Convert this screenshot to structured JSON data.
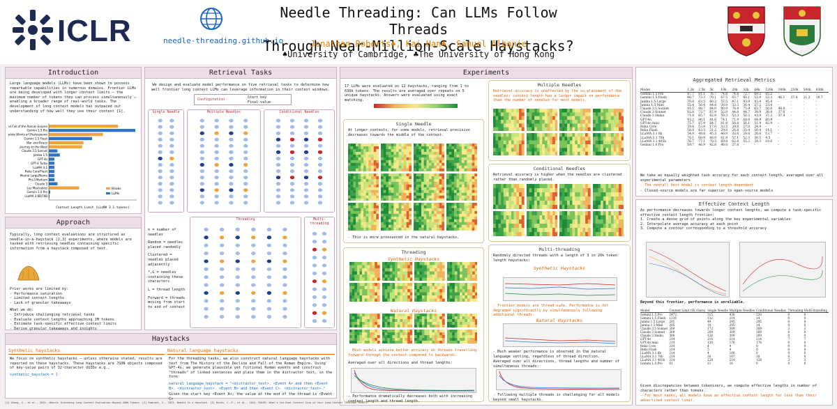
{
  "header": {
    "logo_text": "ICLR",
    "site": "needle-threading.github.io",
    "title_line1": "Needle Threading: Can LLMs Follow Threads",
    "title_line2": "Through Near-Million-Scale Haystacks?",
    "authors": "Jonathan Roberts♠, Kai Han♣, Samuel Albanie",
    "affiliations": "♠University of Cambridge, ♣The University of Hong Kong"
  },
  "intro": {
    "title": "Introduction",
    "text": "Large language models (LLMs) have been shown to possess remarkable capabilities in numerous domains. Frontier LLMs are being developed with longer context limits – the maximum number of tokens they can process simultaneously – enabling a broader range of real-world tasks. The development of long context models has outpaced our understanding of how well they use their context [1].",
    "chart_title": "Context Length Limit (LLaMA 3.1 tokens)",
    "legend": [
      "Books",
      "LLMs"
    ]
  },
  "chart_data": {
    "type": "bar",
    "categories": [
      "Decline and Fall of the Roman Empire",
      "Gemini 1.5 Pro",
      "Complete Works of Shakespeare",
      "Gemini 1.5 Flash",
      "War and Peace",
      "Journey to the West",
      "Claude 3.5 Sonnet",
      "Jamba 1.5",
      "GPT-4o",
      "GPT-4 Turbo",
      "LLaMA 3.1",
      "Reka Core/Flash",
      "Mistral Large/Nemo",
      "Phi-3 Medium",
      "Claude 3",
      "Les Misérables",
      "Gemini 1.0 Pro",
      "LLaMA 3 8B/70B"
    ],
    "values": [
      1.6,
      2.0,
      1.25,
      1.0,
      0.8,
      0.77,
      0.2,
      0.256,
      0.128,
      0.128,
      0.128,
      0.128,
      0.128,
      0.128,
      0.2,
      0.7,
      0.032,
      0.008
    ],
    "xlabel": "Context length limit (LLaMA 3.1 tokens)"
  },
  "approach": {
    "title": "Approach",
    "text": "Typically, long context evaluations are structured as needle-in-a-haystack [2,3] experiments, where models are tasked with retrieving needles containing specific information from a haystack composed of text.",
    "limits_title": "Prior works are limited by:",
    "limits": [
      "- Performance saturation",
      "- Limited context lengths",
      "- Lack of granular takeaways"
    ],
    "do_title": "What we do:",
    "do": [
      "- Introduce challenging retrieval tasks",
      "- Evaluate context lengths approaching 1M tokens",
      "- Estimate task-specific effective context limits",
      "- Derive granular takeaways and insights"
    ]
  },
  "retrieval": {
    "title": "Retrieval Tasks",
    "text": "We design and evaluate model performance on five retrieval tasks to determine how well frontier long context LLMs can leverage information in their context windows.",
    "config": "Configuration",
    "start_key": "Start key",
    "final_value": "Final value",
    "single": "Single Needle",
    "multiple": "Multiple Needles",
    "conditional": "Conditional Needles",
    "threading": "Threading",
    "multi_threading": "Multi-threading",
    "legend": [
      "n = number of needles",
      "Random = needles placed randomly",
      "Clustered = needles placed adjacently",
      "*,& = needles containing these characters",
      "L = thread length",
      "Forward = threads moving from start to end of context"
    ],
    "cols": [
      "Key,k",
      "Values,v",
      "Random, n = 3",
      "Clustered, n = 3",
      "Random, n = 3",
      "Clustered, n = 3",
      "Forward, L = 2",
      "Backward, L = 3",
      "Random, L = 4",
      "2 threads, all forward, L"
    ]
  },
  "experiments": {
    "title": "Experiments",
    "text": "17 LLMs were evaluated on 12 haystacks, ranging from 1 to 630k tokens. The results are averaged over repeats on 5 unique haystacks. Answers were evaluated using exact matching.",
    "single_title": "Single Needle",
    "single_text": "At longer contexts, for some models, retrieval precision decreases towards the middle of the context.",
    "single_text2": "- This is more pronounced in the natural haystacks.",
    "multi_title": "Multiple Needles",
    "multi_text": "Retrieval accuracy is unaffected by the co-placement of the needles; context length has a larger impact on performance than the number of needles for most models.",
    "cond_title": "Conditional Needles",
    "cond_text": "Retrieval accuracy is higher when the needles are clustered rather than randomly placed.",
    "thread_title": "Threading",
    "synthetic": "Synthetic Haystacks",
    "natural": "Natural Haystacks",
    "thread_text": "- Most models achieve better accuracy on threads travelling forward through the context compared to backwards.",
    "thread_text2": "Averaged over all directions and thread lengths:",
    "thread_text3": "- Performance dramatically decreases both with increasing context length and thread length.",
    "mt_title": "Multi-threading",
    "mt_text": "Randomly directed threads with a length of 3 in 20k token length haystacks:",
    "mt_text2": "- Frontier models are thread-safe. Performance is not degraded significantly by simultaneously following additional threads.",
    "mt_text3": "- Much weaker performance is observed in the natural language setting, regardless of thread direction.",
    "mt_text4": "Averaged over all directions, thread lengths and number of simultaneous threads:",
    "mt_text5": "- Following multiple threads is challenging for all models beyond small haystacks."
  },
  "agg": {
    "title": "Aggregated Retrieval Metrics",
    "header": [
      "Model",
      "1.2k",
      "2.5k",
      "5k",
      "10k",
      "20k",
      "32k",
      "64k",
      "128k",
      "180k",
      "250k",
      "500k",
      "630k"
    ],
    "rows": [
      [
        "Gemini 1.5 Pro",
        "87.7",
        "81.1",
        "76.7",
        "74.8",
        "74.8",
        "72.7",
        "69.2",
        "65.2",
        "-",
        "-",
        "-",
        "-"
      ],
      [
        "Gemini 1.5 Flash",
        "80.7",
        "73.3",
        "70.1",
        "67.5",
        "65.7",
        "60.1",
        "53.9",
        "53.3",
        "46.1",
        "37.4",
        "21.3",
        "19.7"
      ],
      [
        "Jamba 1.5 Large",
        "70.8",
        "63.5",
        "60.2",
        "57.5",
        "47.1",
        "43.9",
        "43.4",
        "45.4",
        "-",
        "-",
        "-",
        "-"
      ],
      [
        "Jamba 1.5 Mini",
        "55.4",
        "56.4",
        "44.8",
        "39.0",
        "33.3",
        "30.4",
        "27.2",
        "23.4",
        "-",
        "-",
        "-",
        "-"
      ],
      [
        "Claude 3.5 Sonnet",
        "91.5",
        "88.7",
        "84.0",
        "80.9",
        "78.4",
        "75.9",
        "63.7",
        "50.6",
        "48.0",
        "-",
        "-",
        "-"
      ],
      [
        "Claude 3 Sonnet",
        "82.0",
        "73.7",
        "67.9",
        "52.0",
        "44.6",
        "44.7",
        "39.9",
        "38.8",
        "37.6",
        "-",
        "-",
        "-"
      ],
      [
        "Claude 3 Haiku",
        "71.8",
        "65.7",
        "62.8",
        "59.3",
        "53.3",
        "50.3",
        "43.0",
        "37.2",
        "37.4",
        "-",
        "-",
        "-"
      ],
      [
        "GPT-4o",
        "93.2",
        "86.1",
        "81.6",
        "74.1",
        "71.9",
        "68.6",
        "64.9",
        "60.9",
        "-",
        "-",
        "-",
        "-"
      ],
      [
        "GPT-4o mini",
        "75.7",
        "67.9",
        "64.7",
        "61.8",
        "58.8",
        "56.1",
        "51.9",
        "42.9",
        "-",
        "-",
        "-",
        "-"
      ],
      [
        "Reka Core",
        "59.8",
        "53.8",
        "17.0",
        "33.5",
        "29.6",
        "27.0",
        "24.9",
        "-",
        "-",
        "-",
        "-",
        "-"
      ],
      [
        "Reka Flash",
        "58.8",
        "43.5",
        "31.2",
        "29.8",
        "26.8",
        "25.4",
        "20.4",
        "14.1",
        "-",
        "-",
        "-",
        "-"
      ],
      [
        "LLaMA 3.1 8b",
        "54.9",
        "49.8",
        "45.3",
        "40.9",
        "33.6",
        "29.0",
        "26.0",
        "13.7",
        "-",
        "-",
        "-",
        "-"
      ],
      [
        "LLaMA 3.1 70b",
        "78.1",
        "68.9",
        "66.0",
        "61.9",
        "57.1",
        "52.3",
        "38.5",
        "4.5",
        "-",
        "-",
        "-",
        "-"
      ],
      [
        "LLaMA 3.1 405b",
        "76.7",
        "77.1",
        "70.5",
        "69.8",
        "62.8",
        "55.2",
        "39.3",
        "19.6",
        "-",
        "-",
        "-",
        "-"
      ],
      [
        "Gemini 1.0 Pro",
        "59.7",
        "46.9",
        "42.8",
        "40.0",
        "27.8",
        "-",
        "-",
        "-",
        "-",
        "-",
        "-",
        "-"
      ]
    ],
    "text": "We take an equally weighted task accuracy for each context length, averaged over all experimental parameters",
    "bullets": [
      "- The overall best model is context length dependent",
      "- Closed-source models are far superior to open-source models"
    ]
  },
  "ecl": {
    "title": "Effective Context Length",
    "text": "As performance decreases towards longer context lengths, we compute a task-specific effective context length frontier:",
    "steps": [
      "1. Create a dense grid of points along the key experimental variables",
      "2. Interpolate average accuracy at each point",
      "3. Compute a contour corresponding to a threshold accuracy"
    ],
    "beyond": "Beyond this frontier, performance is unreliable.",
    "table_header": [
      "Model",
      "Context Limit (1k chars)",
      "Single Needle",
      "Multiple Needles",
      "Conditional Needles",
      "Threading",
      "Multi-threading"
    ],
    "rows": [
      [
        "Gemini 1.5 Pro",
        "2472",
        "315",
        "430",
        "220",
        "0",
        "0"
      ],
      [
        "Gemini 1.5 Flash",
        "1236",
        "132",
        "214",
        "14",
        "0",
        "0"
      ],
      [
        "Jamba 1.5 Large",
        "295",
        "49",
        "295",
        "295",
        "0",
        "0"
      ],
      [
        "Jamba 1.5 Mini",
        "295",
        "18",
        "295",
        "14",
        "0",
        "0"
      ],
      [
        "Claude 3.5 Sonnet",
        "309",
        "172",
        "309",
        "309",
        "3",
        "3"
      ],
      [
        "Claude 3 Sonnet",
        "309",
        "209",
        "309",
        "309",
        "0",
        "0"
      ],
      [
        "Claude 3 Haiku",
        "309",
        "126",
        "309",
        "309",
        "0",
        "0"
      ],
      [
        "GPT-4o",
        "214",
        "214",
        "214",
        "214",
        "7",
        "7"
      ],
      [
        "GPT-4o mini",
        "214",
        "120",
        "176",
        "176",
        "0",
        "0"
      ],
      [
        "Reka Core",
        "214",
        "4",
        "4",
        "0",
        "0",
        "0"
      ],
      [
        "Reka Flash",
        "214",
        "5",
        "4",
        "0",
        "0",
        "0"
      ],
      [
        "LLaMA 3.1 8b",
        "214",
        "4",
        "106",
        "0",
        "0",
        "0"
      ],
      [
        "LLaMA 3.1 70b",
        "214",
        "16",
        "107",
        "38",
        "0",
        "0"
      ],
      [
        "LLaMA 3.1 405b",
        "214",
        "128",
        "214",
        "128",
        "3",
        "3"
      ],
      [
        "Gemini 1.0 Pro",
        "61",
        "11",
        "16",
        "0",
        "0",
        "0"
      ]
    ],
    "foot": "Given discrepancies between tokenizers, we compute effective lengths in number of characters rather than tokens.",
    "foot2": "- For most tasks, all models have an effective context length far less than their advertised context limit."
  },
  "haystacks": {
    "title": "Haystacks",
    "syn_title": "Synthetic haystacks",
    "syn_text": "We focus on synthetic haystacks – unless otherwise stated, results are reported on these haystacks. These haystacks are JSON objects composed of key-value pairs of 32-character UUIDs e.g.,",
    "syn_code": "synthetic_haystack = {",
    "nat_title": "Natural language haystacks",
    "nat_text": "For the threading tasks, we also construct natural language haystacks with text from The History of the Decline and Fall of the Roman Empire. Using GPT-4o, we generate plausible yet fictional Roman events and construct \"threads\" of linked sentences and place them in the distractor text, in the form:",
    "nat_code": "natural_language_haystack = \"<distractor_text>. <Event A> and then <Event B>. <distractor_text>. <Event B> and then <Event C>. <distractor_text>.\"",
    "nat_text2": "Given the start key <Event A>, the value at the end of the thread is <Event C>"
  },
  "references": "[1] Zhang, X., et al., 2024. ∞Bench: Extending Long Context Evaluation Beyond 100K Tokens. [2] Kamradt, G., 2023. Needle In A Haystack. [3] Hsieh, C.-P., et al., 2024. RULER: What's the Real Context Size of Your Long-Context Language Models?",
  "colors": {
    "accent": "#e06000",
    "panel_head": "#ecdde6",
    "green": "#1f8a3a",
    "red": "#c8262c"
  }
}
